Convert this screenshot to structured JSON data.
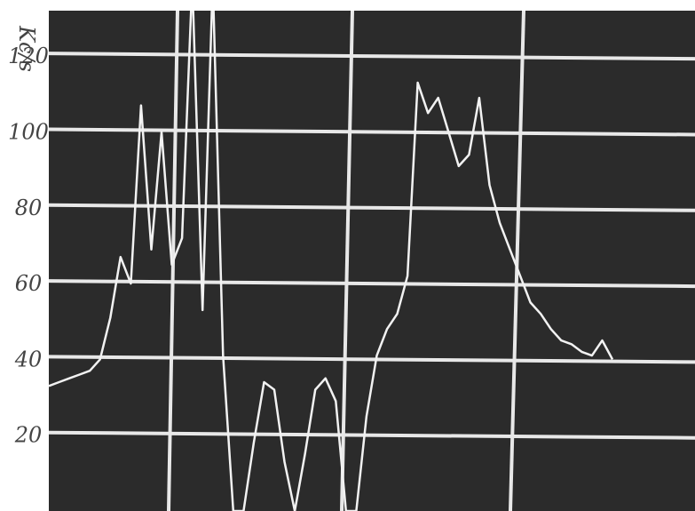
{
  "chart_data": {
    "type": "line",
    "ylabel": "Kc/s",
    "categories": [
      null,
      null,
      null,
      null,
      null,
      null,
      null,
      null,
      null,
      null,
      null,
      null,
      null,
      null,
      null,
      null,
      null,
      null,
      null,
      null,
      null,
      null,
      null,
      null,
      null,
      null,
      null,
      null,
      null,
      null,
      null,
      null,
      null,
      null,
      null,
      null,
      null,
      null,
      null,
      null,
      null,
      null,
      null,
      null,
      null,
      null,
      null,
      null,
      null,
      null,
      null,
      null,
      null,
      null,
      null,
      null
    ],
    "series": [
      {
        "name": null,
        "color": "#f2f2f2",
        "values": [
          33,
          34,
          35,
          36,
          37,
          40,
          51,
          67,
          60,
          107,
          69,
          100,
          65,
          72,
          140,
          53,
          140,
          41,
          0,
          0,
          18,
          34,
          32,
          13,
          0,
          15,
          32,
          35,
          29,
          0,
          0,
          25,
          41,
          48,
          52,
          62,
          113,
          105,
          109,
          100,
          91,
          94,
          109,
          86,
          76,
          69,
          62,
          55,
          52,
          48,
          45,
          44,
          42,
          41,
          45,
          40
        ]
      }
    ],
    "ylim": [
      0,
      132
    ],
    "yticks": [
      20,
      40,
      60,
      80,
      100,
      120
    ],
    "grid": true
  }
}
